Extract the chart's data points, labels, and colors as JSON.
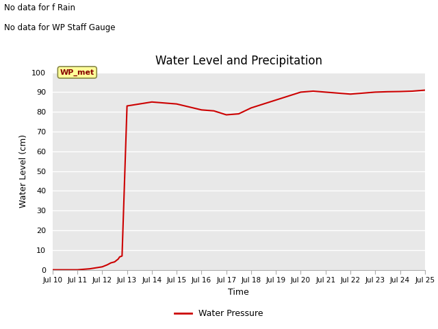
{
  "title": "Water Level and Precipitation",
  "xlabel": "Time",
  "ylabel": "Water Level (cm)",
  "ylim": [
    0,
    100
  ],
  "xlim": [
    0,
    15
  ],
  "annotations_top_left": [
    "No data for f Rain",
    "No data for WP Staff Gauge"
  ],
  "legend_label": "Water Pressure",
  "legend_line_color": "#cc0000",
  "wp_met_label": "WP_met",
  "wp_met_bg": "#ffff99",
  "wp_met_border": "#888844",
  "wp_met_text_color": "#880000",
  "line_color": "#cc0000",
  "bg_color": "#e8e8e8",
  "grid_color": "#ffffff",
  "fig_bg_color": "#ffffff",
  "tick_labels": [
    "Jul 10",
    "Jul 11",
    "Jul 12",
    "Jul 13",
    "Jul 14",
    "Jul 15",
    "Jul 16",
    "Jul 17",
    "Jul 18",
    "Jul 19",
    "Jul 20",
    "Jul 21",
    "Jul 22",
    "Jul 23",
    "Jul 24",
    "Jul 25"
  ],
  "x_data": [
    0,
    0.5,
    1.0,
    1.5,
    2.0,
    2.2,
    2.35,
    2.5,
    2.6,
    2.65,
    2.7,
    2.8,
    3.0,
    3.5,
    4.0,
    4.5,
    5.0,
    5.5,
    6.0,
    6.5,
    7.0,
    7.5,
    8.0,
    8.5,
    9.0,
    9.5,
    10.0,
    10.5,
    11.0,
    11.5,
    12.0,
    12.5,
    13.0,
    13.5,
    14.0,
    14.5,
    15.0
  ],
  "y_data": [
    0,
    0,
    0,
    0.5,
    1.5,
    2.5,
    3.5,
    4.0,
    5.0,
    5.5,
    6.5,
    7.0,
    83.0,
    84.0,
    85.0,
    84.5,
    84.0,
    82.5,
    81.0,
    80.5,
    78.5,
    79.0,
    82.0,
    84.0,
    86.0,
    88.0,
    90.0,
    90.5,
    90.0,
    89.5,
    89.0,
    89.5,
    90.0,
    90.2,
    90.3,
    90.5,
    91.0
  ]
}
